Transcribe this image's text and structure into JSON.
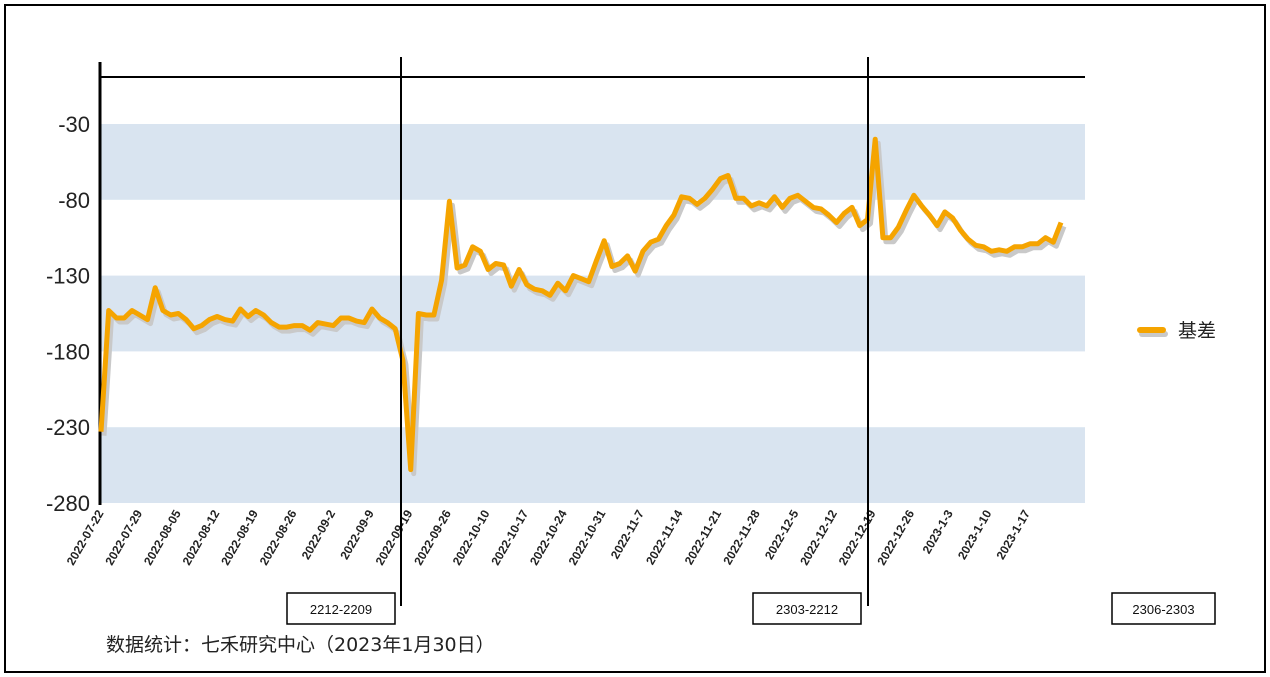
{
  "chart_data": {
    "type": "line",
    "series": [
      {
        "name": "基差",
        "color": "#f5a400",
        "values": [
          -233,
          -153,
          -158,
          -158,
          -153,
          -156,
          -159,
          -138,
          -153,
          -156,
          -155,
          -159,
          -165,
          -163,
          -159,
          -157,
          -159,
          -160,
          -152,
          -157,
          -153,
          -156,
          -161,
          -164,
          -164,
          -163,
          -163,
          -166,
          -161,
          -162,
          -163,
          -158,
          -158,
          -160,
          -161,
          -152,
          -158,
          -161,
          -165,
          -186,
          -258,
          -155,
          -156,
          -156,
          -133,
          -81,
          -125,
          -123,
          -111,
          -114,
          -126,
          -122,
          -123,
          -137,
          -126,
          -136,
          -139,
          -140,
          -143,
          -135,
          -140,
          -130,
          -132,
          -134,
          -120,
          -107,
          -124,
          -122,
          -117,
          -127,
          -114,
          -108,
          -106,
          -97,
          -90,
          -78,
          -79,
          -83,
          -79,
          -73,
          -66,
          -64,
          -79,
          -79,
          -84,
          -82,
          -84,
          -78,
          -85,
          -79,
          -77,
          -81,
          -85,
          -86,
          -90,
          -95,
          -89,
          -85,
          -97,
          -93,
          -40,
          -105,
          -105,
          -98,
          -87,
          -77,
          -84,
          -90,
          -97,
          -88,
          -92,
          -100,
          -106,
          -110,
          -111,
          -114,
          -113,
          -114,
          -111,
          -111,
          -109,
          -109,
          -105,
          -108,
          -95
        ]
      }
    ],
    "x_tick_labels": [
      "2022-07-22",
      "2022-07-29",
      "2022-08-05",
      "2022-08-12",
      "2022-08-19",
      "2022-08-26",
      "2022-09-2",
      "2022-09-9",
      "2022-09-19",
      "2022-09-26",
      "2022-10-10",
      "2022-10-17",
      "2022-10-24",
      "2022-10-31",
      "2022-11-7",
      "2022-11-14",
      "2022-11-21",
      "2022-11-28",
      "2022-12-5",
      "2022-12-12",
      "2022-12-19",
      "2022-12-26",
      "2023-1-3",
      "2023-1-10",
      "2023-1-17"
    ],
    "y_tick_labels": [
      "-30",
      "-80",
      "-130",
      "-180",
      "-230",
      "-280"
    ],
    "y_ticks": [
      -30,
      -80,
      -130,
      -180,
      -230,
      -280
    ],
    "ylim": [
      -280,
      0
    ],
    "period_labels": [
      "2212-2209",
      "2303-2212",
      "2306-2303"
    ],
    "legend": {
      "position": "right",
      "label": "基差"
    },
    "band_color": "#d9e4f0",
    "line_color": "#f5a400",
    "grid": false
  },
  "source_text": "数据统计：七禾研究中心（2023年1月30日）"
}
